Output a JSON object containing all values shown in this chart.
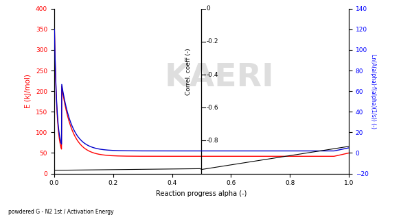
{
  "xlabel": "Reaction progress alpha (-)",
  "ylabel_left": "E (kJ/mol)",
  "ylabel_right": "Ln(A(alpha)·f(alpha)(1/s)) (-)",
  "ylabel_middle": "Correl. coeff (-)",
  "caption": "powdered G - N2 1st / Activation Energy",
  "xlim": [
    0,
    1
  ],
  "ylim_left": [
    0,
    400
  ],
  "ylim_right": [
    -20,
    140
  ],
  "ylim_middle": [
    -1,
    0
  ],
  "vline_x": 0.5,
  "background_color": "#ffffff",
  "left_axis_color": "#ff0000",
  "right_axis_color": "#0000ff",
  "curve_E_color": "#ff0000",
  "curve_lnA_color": "#0000cc",
  "curve_corr_color": "#000000",
  "watermark_text": "KAERI",
  "watermark_color": "#d0d0d0",
  "left_yticks": [
    0,
    50,
    100,
    150,
    200,
    250,
    300,
    350,
    400
  ],
  "right_yticks": [
    -20,
    0,
    20,
    40,
    60,
    80,
    100,
    120,
    140
  ],
  "xticks": [
    0.0,
    0.2,
    0.4,
    0.6,
    0.8,
    1.0
  ],
  "middle_yticks": [
    0,
    -0.2,
    -0.4,
    -0.6,
    -0.8
  ]
}
